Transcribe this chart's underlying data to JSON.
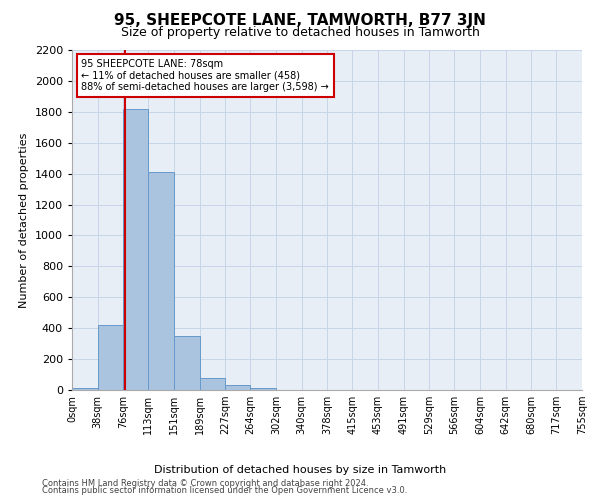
{
  "title": "95, SHEEPCOTE LANE, TAMWORTH, B77 3JN",
  "subtitle": "Size of property relative to detached houses in Tamworth",
  "xlabel": "Distribution of detached houses by size in Tamworth",
  "ylabel": "Number of detached properties",
  "footer_line1": "Contains HM Land Registry data © Crown copyright and database right 2024.",
  "footer_line2": "Contains public sector information licensed under the Open Government Licence v3.0.",
  "bin_edges": [
    0,
    38,
    76,
    113,
    151,
    189,
    227,
    264,
    302,
    340,
    378,
    415,
    453,
    491,
    529,
    566,
    604,
    642,
    680,
    717,
    755
  ],
  "bin_labels": [
    "0sqm",
    "38sqm",
    "76sqm",
    "113sqm",
    "151sqm",
    "189sqm",
    "227sqm",
    "264sqm",
    "302sqm",
    "340sqm",
    "378sqm",
    "415sqm",
    "453sqm",
    "491sqm",
    "529sqm",
    "566sqm",
    "604sqm",
    "642sqm",
    "680sqm",
    "717sqm",
    "755sqm"
  ],
  "bar_heights": [
    15,
    420,
    1820,
    1410,
    350,
    80,
    35,
    15,
    0,
    0,
    0,
    0,
    0,
    0,
    0,
    0,
    0,
    0,
    0,
    0
  ],
  "bar_color": "#aac4df",
  "bar_edge_color": "#6699cc",
  "property_line_x": 78,
  "property_line_color": "#cc0000",
  "annotation_text": "95 SHEEPCOTE LANE: 78sqm\n← 11% of detached houses are smaller (458)\n88% of semi-detached houses are larger (3,598) →",
  "annotation_box_color": "#cc0000",
  "annotation_text_color": "#000000",
  "ylim": [
    0,
    2200
  ],
  "yticks": [
    0,
    200,
    400,
    600,
    800,
    1000,
    1200,
    1400,
    1600,
    1800,
    2000,
    2200
  ],
  "grid_color": "#c8d4e8",
  "background_color": "#e8eef6",
  "title_fontsize": 11,
  "subtitle_fontsize": 9
}
